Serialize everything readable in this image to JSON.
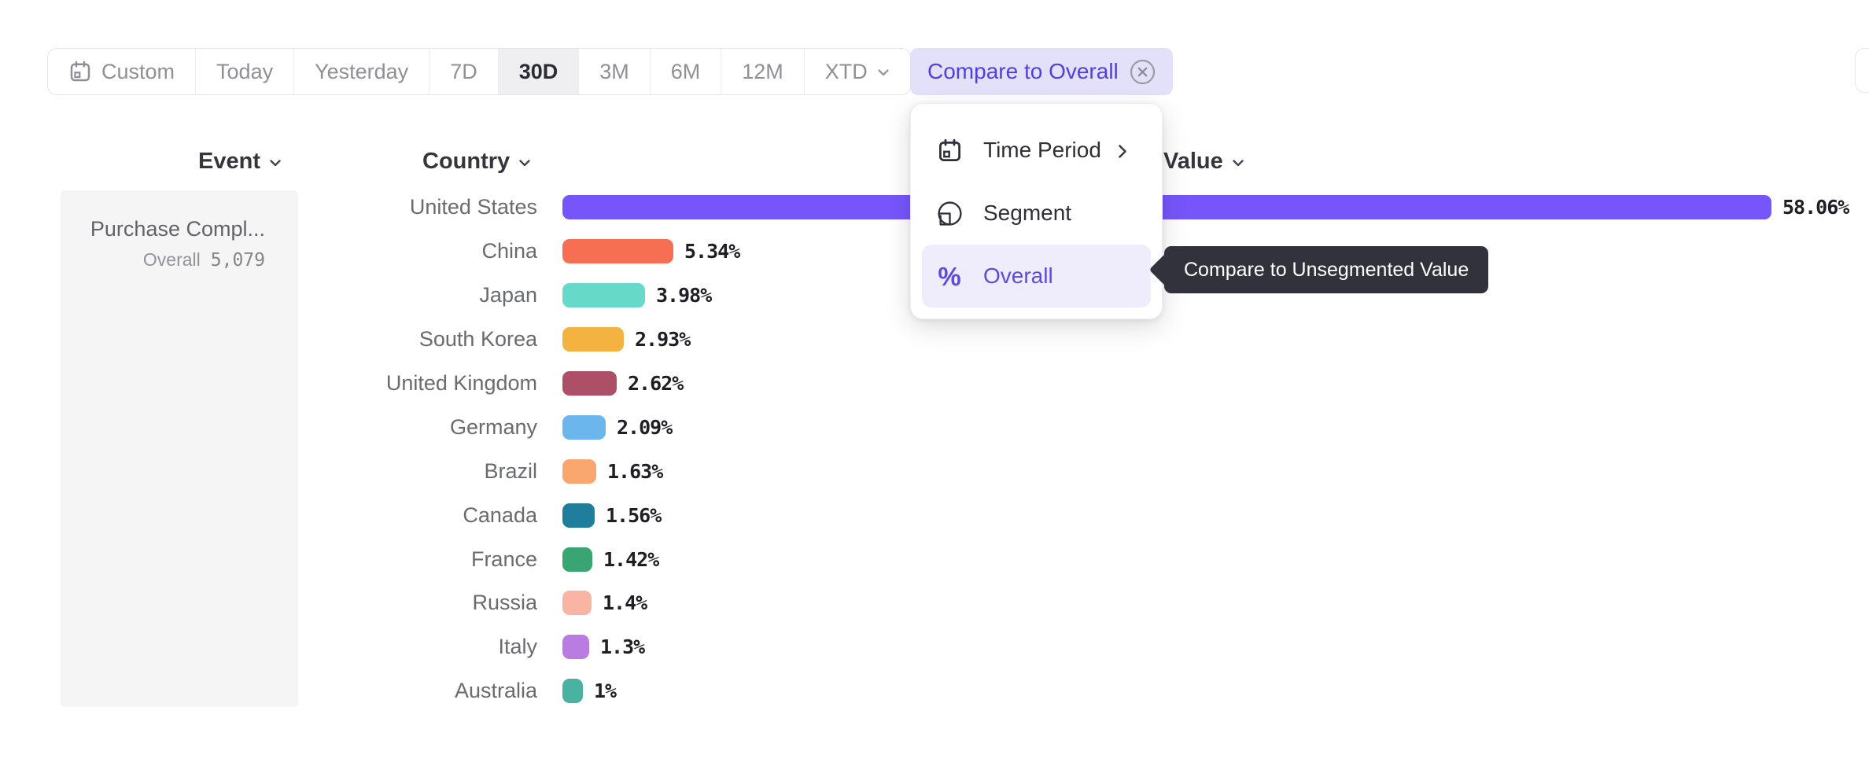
{
  "toolbar": {
    "ranges": [
      {
        "label": "Custom",
        "icon": "calendar",
        "selected": false
      },
      {
        "label": "Today",
        "selected": false
      },
      {
        "label": "Yesterday",
        "selected": false
      },
      {
        "label": "7D",
        "selected": false
      },
      {
        "label": "30D",
        "selected": true
      },
      {
        "label": "3M",
        "selected": false
      },
      {
        "label": "6M",
        "selected": false
      },
      {
        "label": "12M",
        "selected": false
      },
      {
        "label": "XTD",
        "chevron": true,
        "selected": false
      }
    ],
    "compare_button": {
      "label": "Compare to Overall",
      "icon": "circled-x"
    }
  },
  "columns": {
    "event": "Event",
    "country": "Country",
    "value": "Value"
  },
  "event_panel": {
    "event_name": "Purchase Compl...",
    "overall_label": "Overall",
    "overall_value": "5,079"
  },
  "menu": {
    "items": [
      {
        "label": "Time Period",
        "icon": "calendar-icon",
        "submenu": true,
        "selected": false
      },
      {
        "label": "Segment",
        "icon": "segment-icon",
        "submenu": false,
        "selected": false
      },
      {
        "label": "Overall",
        "icon": "percent-icon",
        "submenu": false,
        "selected": true
      }
    ]
  },
  "tooltip": {
    "text": "Compare to Unsegmented Value"
  },
  "chart_data": {
    "type": "bar",
    "orientation": "horizontal",
    "title": "",
    "xlabel": "",
    "ylabel": "Country",
    "categories": [
      "United States",
      "China",
      "Japan",
      "South Korea",
      "United Kingdom",
      "Germany",
      "Brazil",
      "Canada",
      "France",
      "Russia",
      "Italy",
      "Australia"
    ],
    "values": [
      58.06,
      5.34,
      3.98,
      2.93,
      2.62,
      2.09,
      1.63,
      1.56,
      1.42,
      1.4,
      1.3,
      1
    ],
    "value_labels": [
      "58.06%",
      "5.34%",
      "3.98%",
      "2.93%",
      "2.62%",
      "2.09%",
      "1.63%",
      "1.56%",
      "1.42%",
      "1.4%",
      "1.3%",
      "1%"
    ],
    "bar_colors": [
      "#7656fb",
      "#f76f53",
      "#66d9c8",
      "#f4b340",
      "#ae4f68",
      "#6cb6ee",
      "#f9a76f",
      "#1f7e9b",
      "#39a572",
      "#fab4a4",
      "#ba7be2",
      "#49b2a1"
    ],
    "unit": "%",
    "xlim": [
      0,
      58.06
    ],
    "grid": false,
    "legend": "none"
  },
  "colors": {
    "accent_purple": "#5b4ae0",
    "compare_pill_bg": "#e3e0fa",
    "selected_range_bg": "#efeff1",
    "menu_highlight_bg": "#efecfb",
    "tooltip_bg": "#32323c",
    "event_panel_bg": "#f5f5f6"
  }
}
